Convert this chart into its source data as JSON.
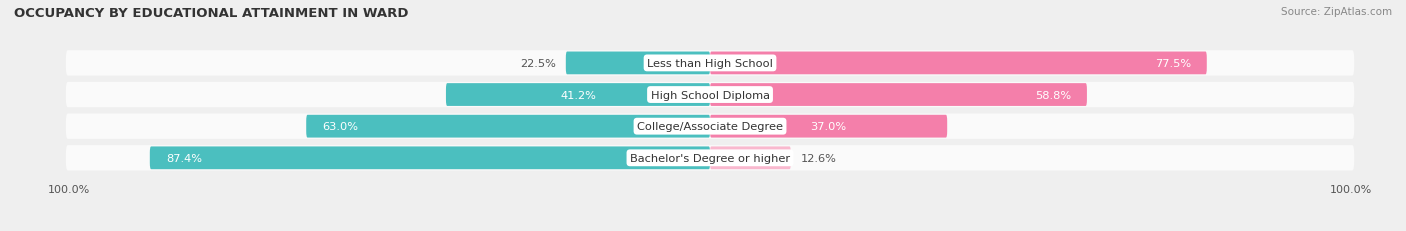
{
  "title": "OCCUPANCY BY EDUCATIONAL ATTAINMENT IN WARD",
  "source": "Source: ZipAtlas.com",
  "categories": [
    "Less than High School",
    "High School Diploma",
    "College/Associate Degree",
    "Bachelor's Degree or higher"
  ],
  "owner_values": [
    22.5,
    41.2,
    63.0,
    87.4
  ],
  "renter_values": [
    77.5,
    58.8,
    37.0,
    12.6
  ],
  "owner_color": "#4bbfbf",
  "renter_color": "#f47faa",
  "renter_color_light": "#f9b8ce",
  "bar_height": 0.72,
  "background_color": "#efefef",
  "bar_background_color": "#fafafa",
  "title_fontsize": 9.5,
  "label_fontsize": 8.2,
  "tick_fontsize": 8,
  "source_fontsize": 7.5,
  "legend_fontsize": 8.5
}
